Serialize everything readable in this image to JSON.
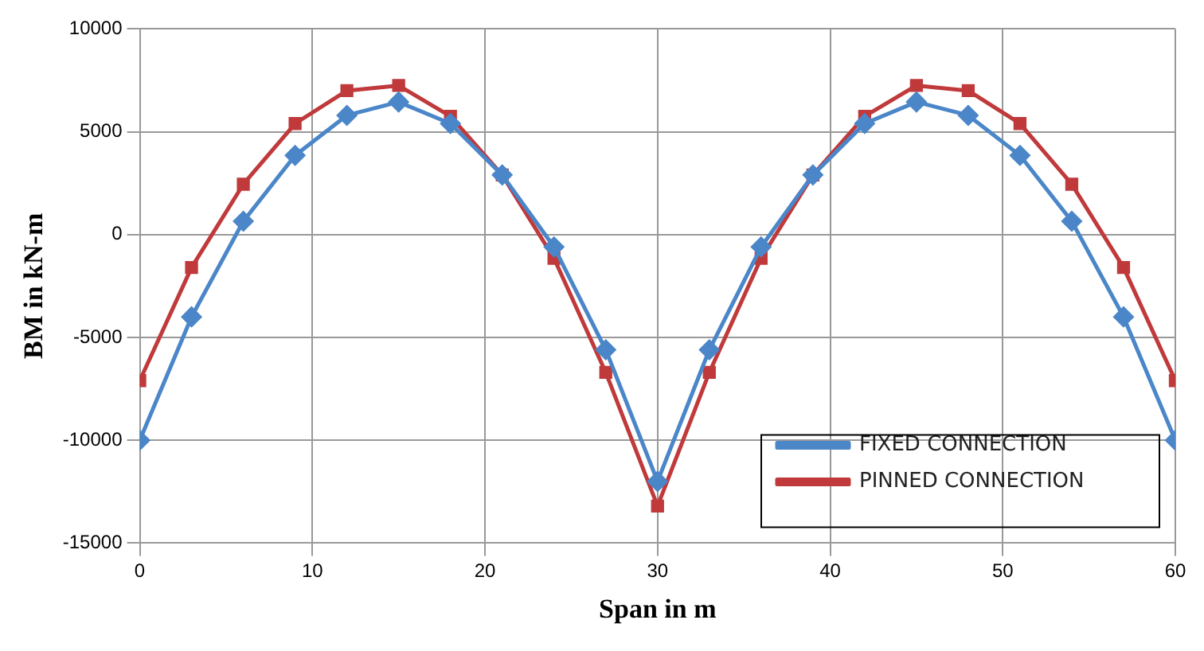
{
  "chart_data": {
    "type": "line",
    "xlabel": "Span in m",
    "ylabel": "BM in kN-m",
    "x": [
      0,
      3,
      6,
      9,
      12,
      15,
      18,
      21,
      24,
      27,
      30,
      33,
      36,
      39,
      42,
      45,
      48,
      51,
      54,
      57,
      60
    ],
    "series": [
      {
        "name": "FIXED CONNECTION",
        "color": "#4a86c8",
        "marker": "diamond",
        "values": [
          -10000,
          -4000,
          650,
          3850,
          5800,
          6450,
          5400,
          2900,
          -600,
          -5600,
          -12000,
          -5600,
          -600,
          2900,
          5400,
          6450,
          5800,
          3850,
          650,
          -4000,
          -10000
        ]
      },
      {
        "name": "PINNED CONNECTION",
        "color": "#c0393b",
        "marker": "square",
        "values": [
          -7100,
          -1600,
          2450,
          5400,
          7000,
          7250,
          5750,
          2900,
          -1150,
          -6700,
          -13200,
          -6700,
          -1150,
          2900,
          5750,
          7250,
          7000,
          5400,
          2450,
          -1600,
          -7100
        ]
      }
    ],
    "xlim": [
      0,
      60
    ],
    "xticks": [
      0,
      10,
      20,
      30,
      40,
      50,
      60
    ],
    "ylim": [
      -15000,
      10000
    ],
    "yticks": [
      -15000,
      -10000,
      -5000,
      0,
      5000,
      10000
    ],
    "grid": true,
    "legend": "bottom right",
    "line_style": "solid"
  }
}
